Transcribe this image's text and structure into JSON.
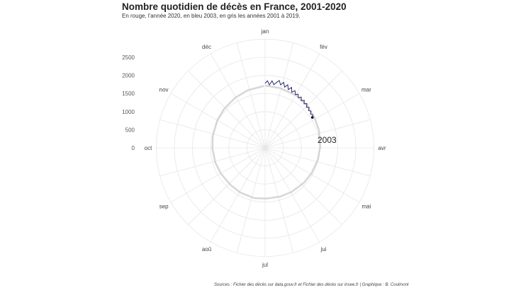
{
  "chart_data": {
    "type": "line",
    "coordinate_system": "polar",
    "title": "Nombre quotidien de décès en France, 2001-2020",
    "subtitle": "En rouge, l'année 2020, en bleu 2003, en gris les années 2001 à 2019.",
    "source": "Sources : Fichier des décès sur data.gouv.fr et Fichier des décès sur insee.fr | Graphique : B. Coulmont",
    "angular_labels": [
      "jan",
      "fév",
      "mar",
      "avr",
      "mai",
      "jui",
      "jul",
      "aoû",
      "sep",
      "oct",
      "nov",
      "déc"
    ],
    "radial_ticks": [
      0,
      500,
      1000,
      1500,
      2000,
      2500
    ],
    "radial_range": [
      0,
      3000
    ],
    "grid": true,
    "annotation": "2003",
    "series": [
      {
        "color": "#cccccc",
        "x_day": [
          1,
          15,
          32,
          46,
          60,
          74,
          91,
          105,
          121,
          135,
          152,
          166,
          182,
          196,
          213,
          227,
          244,
          258,
          274,
          288,
          305,
          319,
          335,
          349,
          365
        ],
        "values": [
          1720,
          1700,
          1680,
          1650,
          1600,
          1560,
          1520,
          1490,
          1460,
          1440,
          1420,
          1410,
          1400,
          1420,
          1410,
          1400,
          1410,
          1430,
          1450,
          1480,
          1520,
          1560,
          1610,
          1660,
          1710
        ]
      },
      {
        "color": "#2b2a6e",
        "x_day": [
          1,
          3,
          5,
          7,
          9,
          11,
          13,
          15,
          17,
          19,
          21,
          23,
          25,
          27,
          29,
          31,
          33,
          35,
          37,
          39,
          41,
          43,
          45,
          47,
          49,
          51,
          53,
          55,
          57,
          59
        ],
        "values": [
          1780,
          1850,
          1740,
          1860,
          1760,
          1830,
          1900,
          1790,
          1880,
          1760,
          1850,
          1730,
          1820,
          1700,
          1780,
          1690,
          1740,
          1660,
          1720,
          1640,
          1700,
          1620,
          1680,
          1600,
          1650,
          1580,
          1620,
          1560,
          1600,
          1550
        ]
      }
    ]
  }
}
